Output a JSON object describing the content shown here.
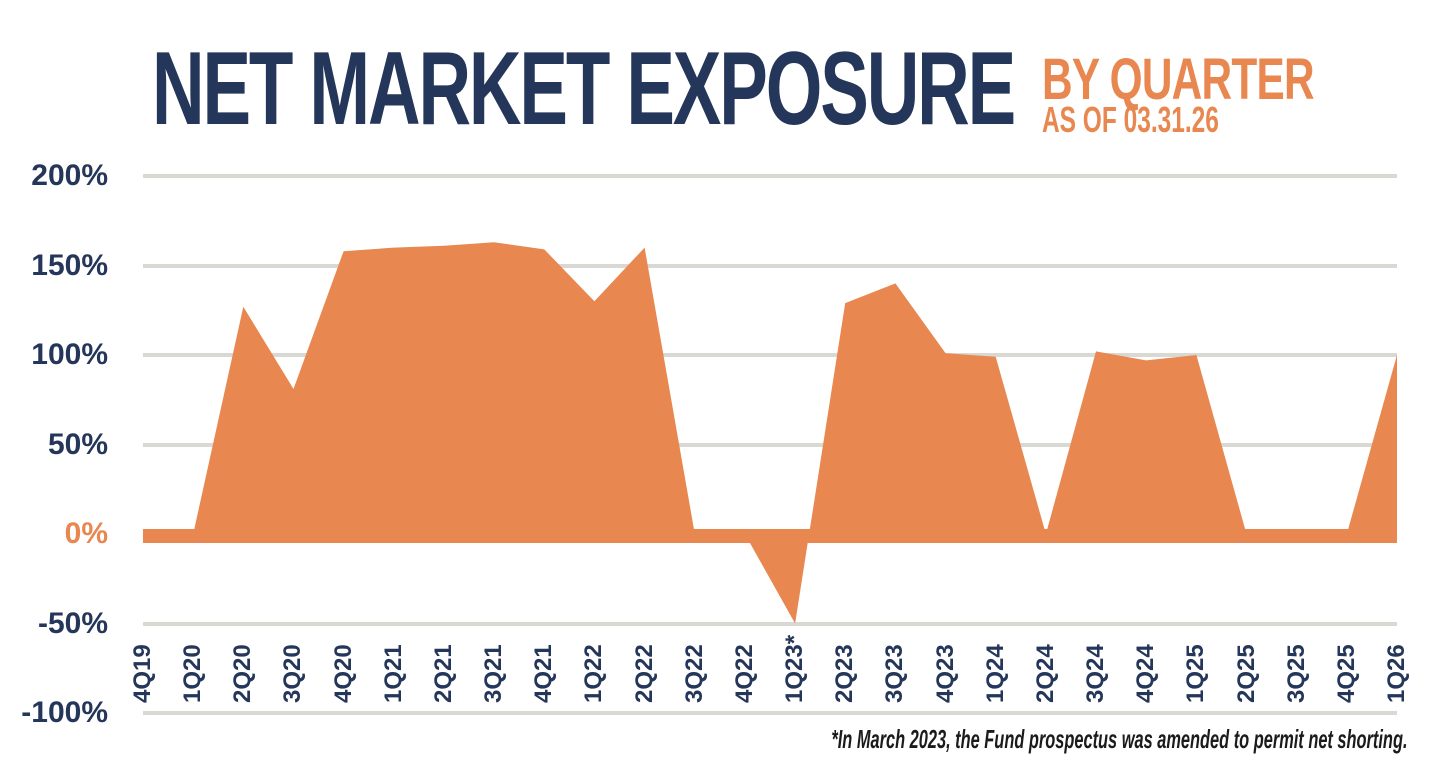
{
  "header": {
    "title": "NET MARKET EXPOSURE",
    "subtitle_line1": "BY QUARTER",
    "subtitle_line2": "AS OF 03.31.26"
  },
  "footnote": "*In March 2023, the Fund prospectus was amended to permit net shorting.",
  "colors": {
    "navy": "#243659",
    "orange": "#E8874F",
    "gridline": "#D9D8D2",
    "footnote_text": "#1B1B1B"
  },
  "chart_data": {
    "type": "area",
    "title": "NET MARKET EXPOSURE BY QUARTER AS OF 03.31.26",
    "categories": [
      "4Q19",
      "1Q20",
      "2Q20",
      "3Q20",
      "4Q20",
      "1Q21",
      "2Q21",
      "3Q21",
      "4Q21",
      "1Q22",
      "2Q22",
      "3Q22",
      "4Q22",
      "1Q23*",
      "2Q23",
      "3Q23",
      "4Q23",
      "1Q24",
      "2Q24",
      "3Q24",
      "4Q24",
      "1Q25",
      "2Q25",
      "3Q25",
      "4Q25",
      "1Q26"
    ],
    "values": [
      0,
      0,
      127,
      81,
      158,
      160,
      161,
      163,
      159,
      130,
      160,
      0,
      0,
      -50,
      129,
      140,
      101,
      99,
      0,
      102,
      97,
      100,
      0,
      0,
      0,
      100
    ],
    "unit": "%",
    "yticks": [
      "200%",
      "150%",
      "100%",
      "50%",
      "0%",
      "-50%",
      "-100%"
    ],
    "ytick_values": [
      200,
      150,
      100,
      50,
      0,
      -50,
      -100
    ],
    "ylim": [
      -100,
      200
    ],
    "grid": true,
    "legend": "none",
    "series_color": "#E8874F",
    "zero_line_color": "#E8874F",
    "annotation": "*In March 2023, the Fund prospectus was amended to permit net shorting."
  }
}
